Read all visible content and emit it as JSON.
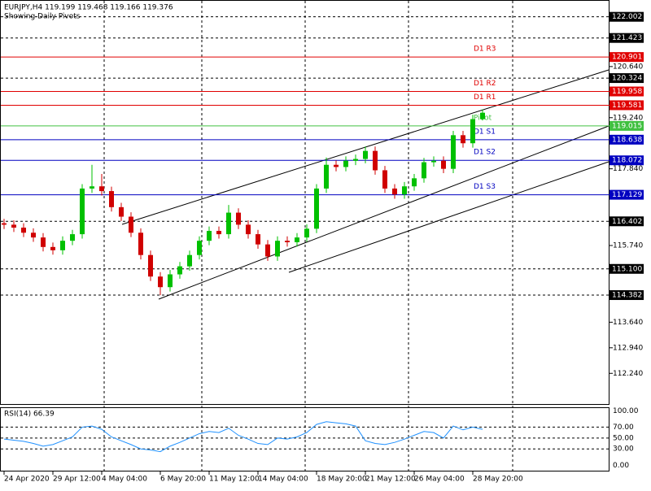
{
  "chart_data": {
    "type": "candlestick",
    "title": "EURJPY,H4  119.199 119.468 119.166 119.376",
    "subtitle": "Showing Daily Pivots",
    "categories": [
      "24 Apr 2020",
      null,
      null,
      null,
      null,
      "29 Apr 12:00",
      null,
      null,
      null,
      null,
      "4 May 04:00",
      null,
      null,
      null,
      null,
      null,
      "6 May 20:00",
      null,
      null,
      null,
      null,
      "11 May 12:00",
      null,
      null,
      null,
      null,
      "14 May 04:00",
      null,
      null,
      null,
      null,
      null,
      "18 May 20:00",
      null,
      null,
      null,
      null,
      "21 May 12:00",
      null,
      null,
      null,
      null,
      "26 May 04:00",
      null,
      null,
      null,
      null,
      null,
      "28 May 20:00",
      null
    ],
    "open": [
      116.35,
      116.31,
      116.23,
      116.09,
      115.96,
      115.7,
      115.61,
      115.87,
      116.05,
      117.3,
      117.36,
      117.23,
      116.79,
      116.53,
      116.09,
      115.48,
      114.89,
      114.6,
      114.95,
      115.17,
      115.48,
      115.87,
      116.14,
      116.05,
      116.64,
      116.31,
      116.05,
      115.77,
      115.44,
      115.87,
      115.83,
      115.96,
      116.2,
      117.3,
      117.95,
      117.89,
      118.06,
      118.11,
      118.33,
      117.8,
      117.3,
      117.14,
      117.36,
      117.58,
      118.02,
      118.06,
      117.84,
      118.76,
      118.54,
      119.199
    ],
    "high": [
      116.47,
      116.43,
      116.35,
      116.21,
      116.08,
      115.82,
      115.99,
      116.17,
      117.42,
      117.95,
      117.7,
      117.35,
      116.91,
      116.65,
      116.21,
      115.6,
      115.01,
      115.07,
      115.29,
      115.6,
      115.99,
      116.26,
      116.26,
      116.85,
      116.76,
      116.43,
      116.17,
      115.89,
      115.99,
      115.99,
      116.08,
      116.32,
      117.42,
      118.15,
      118.07,
      118.18,
      118.23,
      118.45,
      118.45,
      117.92,
      117.42,
      117.48,
      117.7,
      118.14,
      118.18,
      118.18,
      118.88,
      118.88,
      119.32,
      119.468
    ],
    "low": [
      116.19,
      116.11,
      115.97,
      115.84,
      115.58,
      115.49,
      115.49,
      115.75,
      115.93,
      117.18,
      117.11,
      116.67,
      116.41,
      115.97,
      115.36,
      114.77,
      114.38,
      114.48,
      114.83,
      115.05,
      115.36,
      115.75,
      115.93,
      115.93,
      116.19,
      115.93,
      115.65,
      115.32,
      115.32,
      115.71,
      115.71,
      115.84,
      116.08,
      117.18,
      117.77,
      117.77,
      117.94,
      117.99,
      117.68,
      117.18,
      117.02,
      117.02,
      117.24,
      117.46,
      117.9,
      117.72,
      117.72,
      118.42,
      118.42,
      119.166
    ],
    "close": [
      116.31,
      116.23,
      116.09,
      115.96,
      115.7,
      115.61,
      115.87,
      116.05,
      117.3,
      117.36,
      117.23,
      116.79,
      116.53,
      116.09,
      115.48,
      114.89,
      114.6,
      114.95,
      115.17,
      115.48,
      115.87,
      116.14,
      116.05,
      116.64,
      116.31,
      116.05,
      115.77,
      115.44,
      115.87,
      115.83,
      115.96,
      116.2,
      117.3,
      117.95,
      117.89,
      118.06,
      118.11,
      118.33,
      117.8,
      117.3,
      117.14,
      117.36,
      117.58,
      118.02,
      118.06,
      117.84,
      118.76,
      118.54,
      119.2,
      119.376
    ],
    "up_color": "#00c000",
    "down_color": "#d00000",
    "ylim": [
      111.4,
      122.44
    ],
    "yticks": [
      {
        "value": 120.64,
        "label": "120.640"
      },
      {
        "value": 119.24,
        "label": "119.240"
      },
      {
        "value": 117.84,
        "label": "117.840"
      },
      {
        "value": 115.74,
        "label": "115.740"
      },
      {
        "value": 113.64,
        "label": "113.640"
      },
      {
        "value": 112.94,
        "label": "112.940"
      },
      {
        "value": 112.24,
        "label": "112.240"
      }
    ],
    "grid_levels": [
      122.002,
      121.423,
      120.324,
      116.402,
      {
        "value": 115.1,
        "label": "115.100"
      },
      114.382
    ],
    "pivots": [
      {
        "name": "D1 R3",
        "value": 120.901,
        "color": "#e00000"
      },
      {
        "name": "D1 R2",
        "value": 119.958,
        "color": "#e00000"
      },
      {
        "name": "D1 R1",
        "value": 119.581,
        "color": "#e00000"
      },
      {
        "name": "Pivot",
        "value": 119.015,
        "color": "#40c040"
      },
      {
        "name": "D1 S1",
        "value": 118.638,
        "color": "#0000c0"
      },
      {
        "name": "D1 S2",
        "value": 118.072,
        "color": "#0000c0"
      },
      {
        "name": "D1 S3",
        "value": 117.129,
        "color": "#0000c0"
      }
    ],
    "rsi": {
      "title": "RSI(14) 66.39",
      "color": "#1e90ff",
      "values": [
        48,
        46,
        44,
        40,
        35,
        38,
        45,
        52,
        70,
        72,
        66,
        52,
        45,
        38,
        30,
        28,
        25,
        35,
        42,
        50,
        58,
        62,
        60,
        68,
        55,
        48,
        40,
        38,
        50,
        48,
        52,
        60,
        75,
        80,
        78,
        76,
        72,
        45,
        40,
        38,
        42,
        48,
        55,
        62,
        60,
        50,
        72,
        65,
        70,
        66
      ],
      "ylim": [
        -10,
        105
      ],
      "yticks": [
        {
          "value": 100,
          "label": "100.00"
        },
        {
          "value": 70,
          "label": "70.00"
        },
        {
          "value": 50,
          "label": "50.00"
        },
        {
          "value": 30,
          "label": "30.00"
        },
        {
          "value": 0,
          "label": "0.00"
        }
      ]
    }
  }
}
